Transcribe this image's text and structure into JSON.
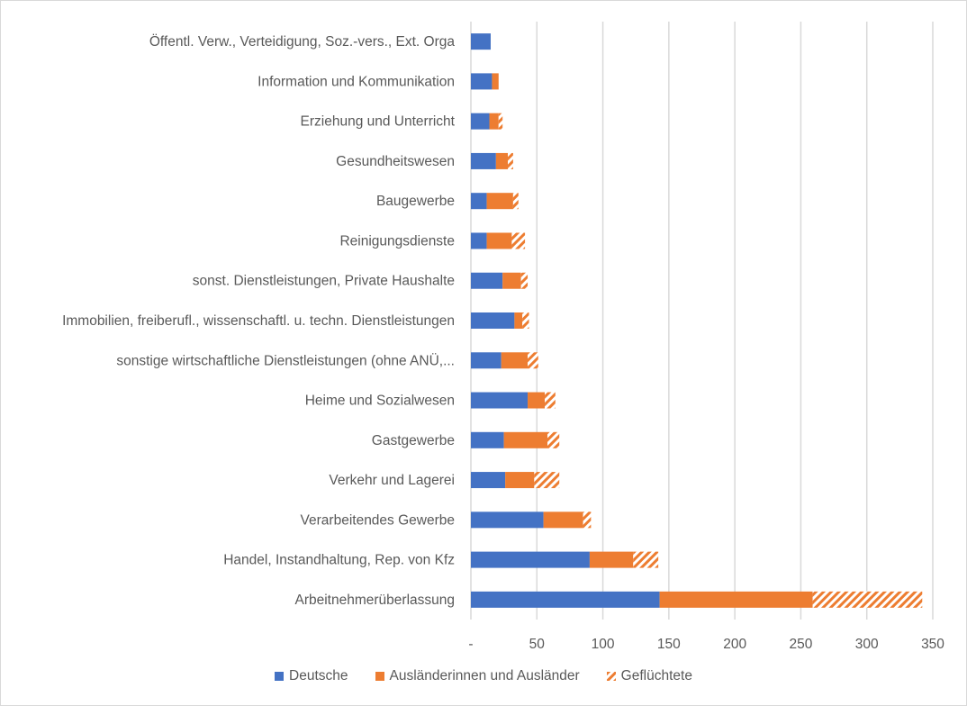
{
  "chart_data": {
    "type": "bar",
    "orientation": "horizontal",
    "stacked": true,
    "title": "",
    "xlabel": "",
    "ylabel": "",
    "xlim": [
      0,
      350
    ],
    "x_ticks": [
      "-",
      "50",
      "100",
      "150",
      "200",
      "250",
      "300",
      "350"
    ],
    "x_tick_values": [
      0,
      50,
      100,
      150,
      200,
      250,
      300,
      350
    ],
    "grid": "vertical",
    "legend_position": "bottom",
    "categories": [
      "Öffentl. Verw., Verteidigung, Soz.-vers., Ext. Orga",
      "Information und Kommunikation",
      "Erziehung und Unterricht",
      "Gesundheitswesen",
      "Baugewerbe",
      "Reinigungsdienste",
      "sonst. Dienstleistungen, Private Haushalte",
      "Immobilien, freiberufl., wissenschaftl. u. techn. Dienstleistungen",
      "sonstige wirtschaftliche Dienstleistungen (ohne ANÜ,...",
      "Heime und Sozialwesen",
      "Gastgewerbe",
      "Verkehr und Lagerei",
      "Verarbeitendes Gewerbe",
      "Handel, Instandhaltung, Rep. von Kfz",
      "Arbeitnehmerüberlassung"
    ],
    "series": [
      {
        "name": "Deutsche",
        "color": "#4472c4",
        "pattern": "solid",
        "values": [
          15,
          16,
          14,
          19,
          12,
          12,
          24,
          33,
          23,
          43,
          25,
          26,
          55,
          90,
          143
        ]
      },
      {
        "name": "Ausländerinnen und Ausländer",
        "color": "#ed7d31",
        "pattern": "solid",
        "values": [
          0,
          5,
          7,
          9,
          20,
          19,
          14,
          6,
          20,
          13,
          33,
          22,
          30,
          33,
          116
        ]
      },
      {
        "name": "Geflüchtete",
        "color": "#ed7d31",
        "pattern": "hatched",
        "values": [
          0,
          0,
          3,
          4,
          4,
          10,
          5,
          5,
          8,
          8,
          9,
          19,
          6,
          19,
          83
        ]
      }
    ]
  }
}
